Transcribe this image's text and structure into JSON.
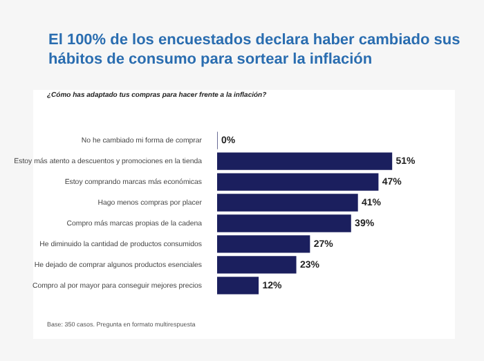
{
  "chart_data": {
    "type": "bar",
    "orientation": "horizontal",
    "title": "El 100% de los encuestados declara haber cambiado sus hábitos de consumo para sortear la inflación",
    "subtitle": "¿Cómo has adaptado tus compras para hacer frente a la inflación?",
    "categories": [
      "No he cambiado mi forma de comprar",
      "Estoy más atento a descuentos y promociones en la tienda",
      "Estoy comprando marcas más económicas",
      "Hago menos compras por placer",
      "Compro más marcas propias de la cadena",
      "He diminuido la cantidad de productos consumidos",
      "He dejado de comprar algunos productos esenciales",
      "Compro al por mayor para conseguir mejores precios"
    ],
    "values": [
      0,
      51,
      47,
      41,
      39,
      27,
      23,
      12
    ],
    "value_labels": [
      "0%",
      "51%",
      "47%",
      "41%",
      "39%",
      "27%",
      "23%",
      "12%"
    ],
    "color": "#1b1f5e",
    "annotations": [
      "Base: 350 casos. Pregunta en formato multirespuesta"
    ]
  }
}
